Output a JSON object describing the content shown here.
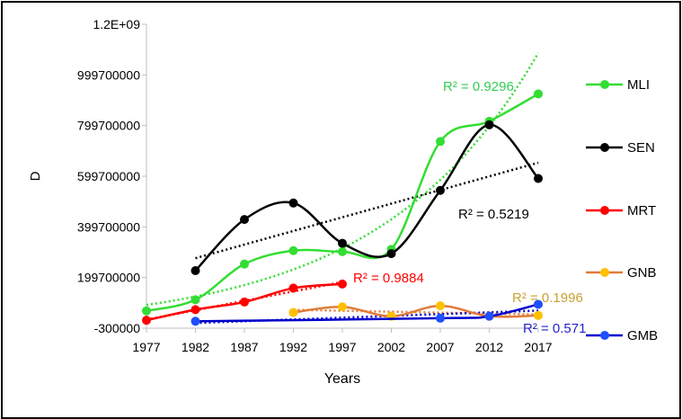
{
  "chart_data": {
    "type": "line",
    "title": "",
    "xlabel": "Years",
    "ylabel": "D",
    "x": [
      1977,
      1982,
      1987,
      1992,
      1997,
      2002,
      2007,
      2012,
      2017
    ],
    "x_tick_labels": [
      "1977",
      "1982",
      "1987",
      "1992",
      "1997",
      "2002",
      "2007",
      "2012",
      "2017"
    ],
    "y_tick_labels": [
      "-300000",
      "199700000",
      "399700000",
      "599700000",
      "799700000",
      "999700000",
      "1.2E+09"
    ],
    "ylim": [
      -300000,
      1200000000
    ],
    "grid": false,
    "legend_placement": "right",
    "smoothed": true,
    "series": [
      {
        "name": "MLI",
        "color": "#33dd33",
        "marker_color": "#33dd33",
        "values": [
          68000000,
          112000000,
          253000000,
          306000000,
          302000000,
          311000000,
          737000000,
          817000000,
          925000000
        ],
        "trendline": "exponential",
        "r2_label": "R² = 0.9296"
      },
      {
        "name": "SEN",
        "color": "#000000",
        "marker_color": "#000000",
        "values": [
          null,
          227000000,
          429000000,
          494000000,
          335000000,
          294000000,
          544000000,
          803000000,
          591000000
        ],
        "trendline": "linear",
        "r2_label": "R² = 0.5219"
      },
      {
        "name": "MRT",
        "color": "#ff0000",
        "marker_color": "#ff0000",
        "values": [
          31000000,
          73000000,
          103000000,
          158000000,
          174000000,
          null,
          null,
          null,
          null
        ],
        "trendline": "linear",
        "r2_label": "R² = 0.9884"
      },
      {
        "name": "GNB",
        "color": "#e07b39",
        "marker_color": "#ffc000",
        "values": [
          null,
          null,
          null,
          62000000,
          84000000,
          47000000,
          88000000,
          47000000,
          50000000
        ],
        "trendline": "linear",
        "r2_label": "R² = 0.1996"
      },
      {
        "name": "GMB",
        "color": "#0000cc",
        "marker_color": "#1f4fff",
        "values": [
          null,
          27000000,
          null,
          null,
          null,
          null,
          39000000,
          47000000,
          94000000
        ],
        "trendline": "linear",
        "r2_label": "R² = 0.571"
      }
    ],
    "r2_label_colors": [
      "#33cc55",
      "#000000",
      "#ff0000",
      "#c8a030",
      "#2222cc"
    ]
  }
}
